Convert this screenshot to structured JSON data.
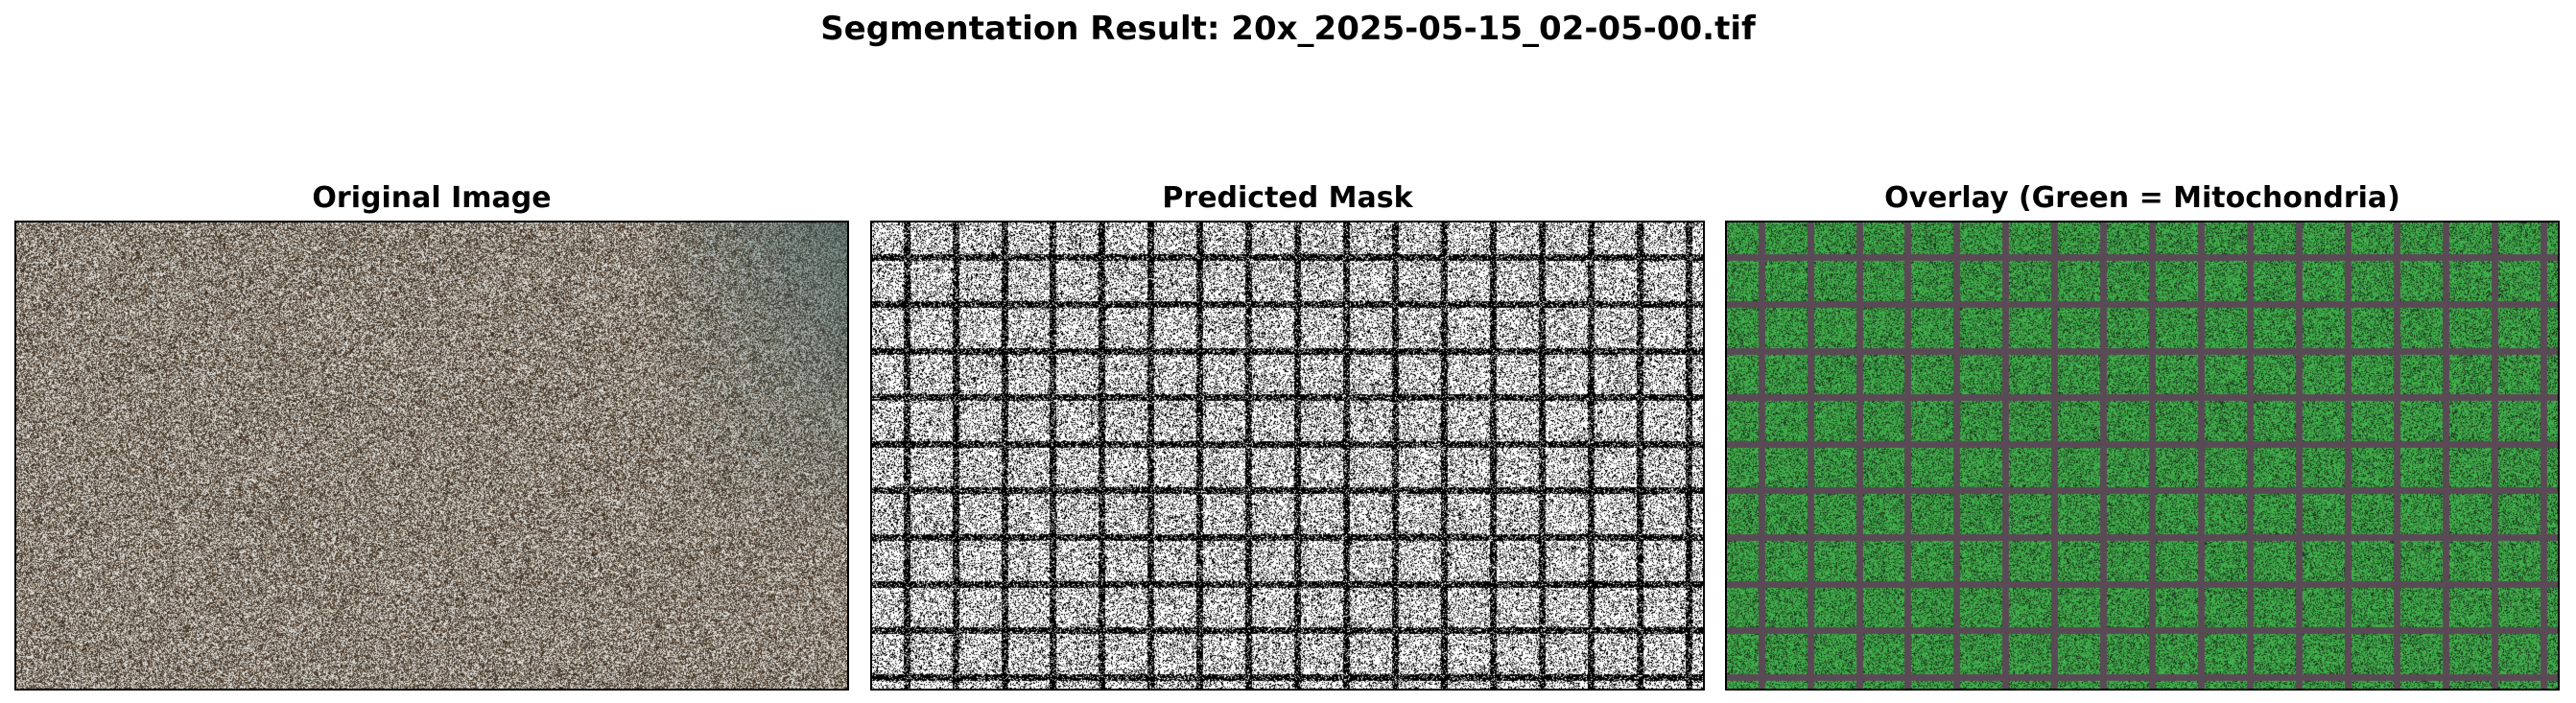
{
  "figure": {
    "suptitle": "Segmentation Result: 20x_2025-05-15_02-05-00.tif"
  },
  "panels": [
    {
      "title": "Original Image",
      "kind": "original-micrograph",
      "palette": {
        "dark": "#3a2e22",
        "mid": "#7a6a58",
        "light": "#dcdcd8",
        "tint_corner": "#3a5a5a"
      }
    },
    {
      "title": "Predicted Mask",
      "kind": "binary-mask",
      "palette": {
        "foreground": "#ffffff",
        "background": "#000000"
      },
      "grid": {
        "columns": 17,
        "rows": 10
      }
    },
    {
      "title": "Overlay (Green = Mitochondria)",
      "kind": "overlay",
      "palette": {
        "green": "#3fae4a",
        "dark": "#1f3a22",
        "gridline": "#5a4a55"
      },
      "grid": {
        "columns": 17,
        "rows": 10
      }
    }
  ]
}
